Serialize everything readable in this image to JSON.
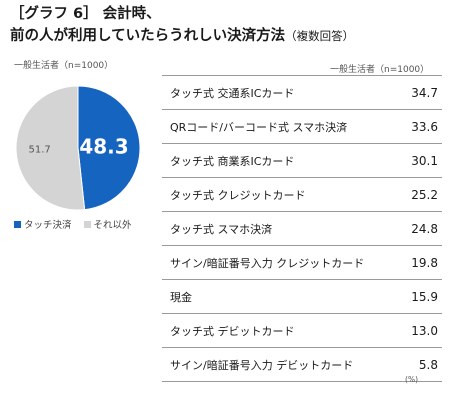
{
  "title": {
    "line1": "［グラフ 6］ 会計時、",
    "line2": "前の人が利用していたらうれしい決済方法",
    "note": "（複数回答）"
  },
  "pie_sample": "一般生活者（n=1000）",
  "table_sample": "一般生活者（n=1000）",
  "unit": "(%)",
  "colors": {
    "touch": "#1565c0",
    "other": "#d4d4d4",
    "label_light": "#ffffff",
    "label_dark": "#555555"
  },
  "chart_data": [
    {
      "type": "pie",
      "slices": [
        {
          "label": "タッチ決済",
          "value": 48.3,
          "color": "#1565c0"
        },
        {
          "label": "それ以外",
          "value": 51.7,
          "color": "#d4d4d4"
        }
      ],
      "legend": [
        "タッチ決済",
        "それ以外"
      ],
      "legend_placement": "bottom-left"
    },
    {
      "type": "table",
      "categories": [
        "タッチ式 交通系ICカード",
        "QRコード/バーコード式 スマホ決済",
        "タッチ式 商業系ICカード",
        "タッチ式 クレジットカード",
        "タッチ式 スマホ決済",
        "サイン/暗証番号入力 クレジットカード",
        "現金",
        "タッチ式 デビットカード",
        "サイン/暗証番号入力 デビットカード"
      ],
      "values": [
        "34.7",
        "33.6",
        "30.1",
        "25.2",
        "24.8",
        "19.8",
        "15.9",
        "13.0",
        "5.8"
      ],
      "unit": "(%)"
    }
  ]
}
